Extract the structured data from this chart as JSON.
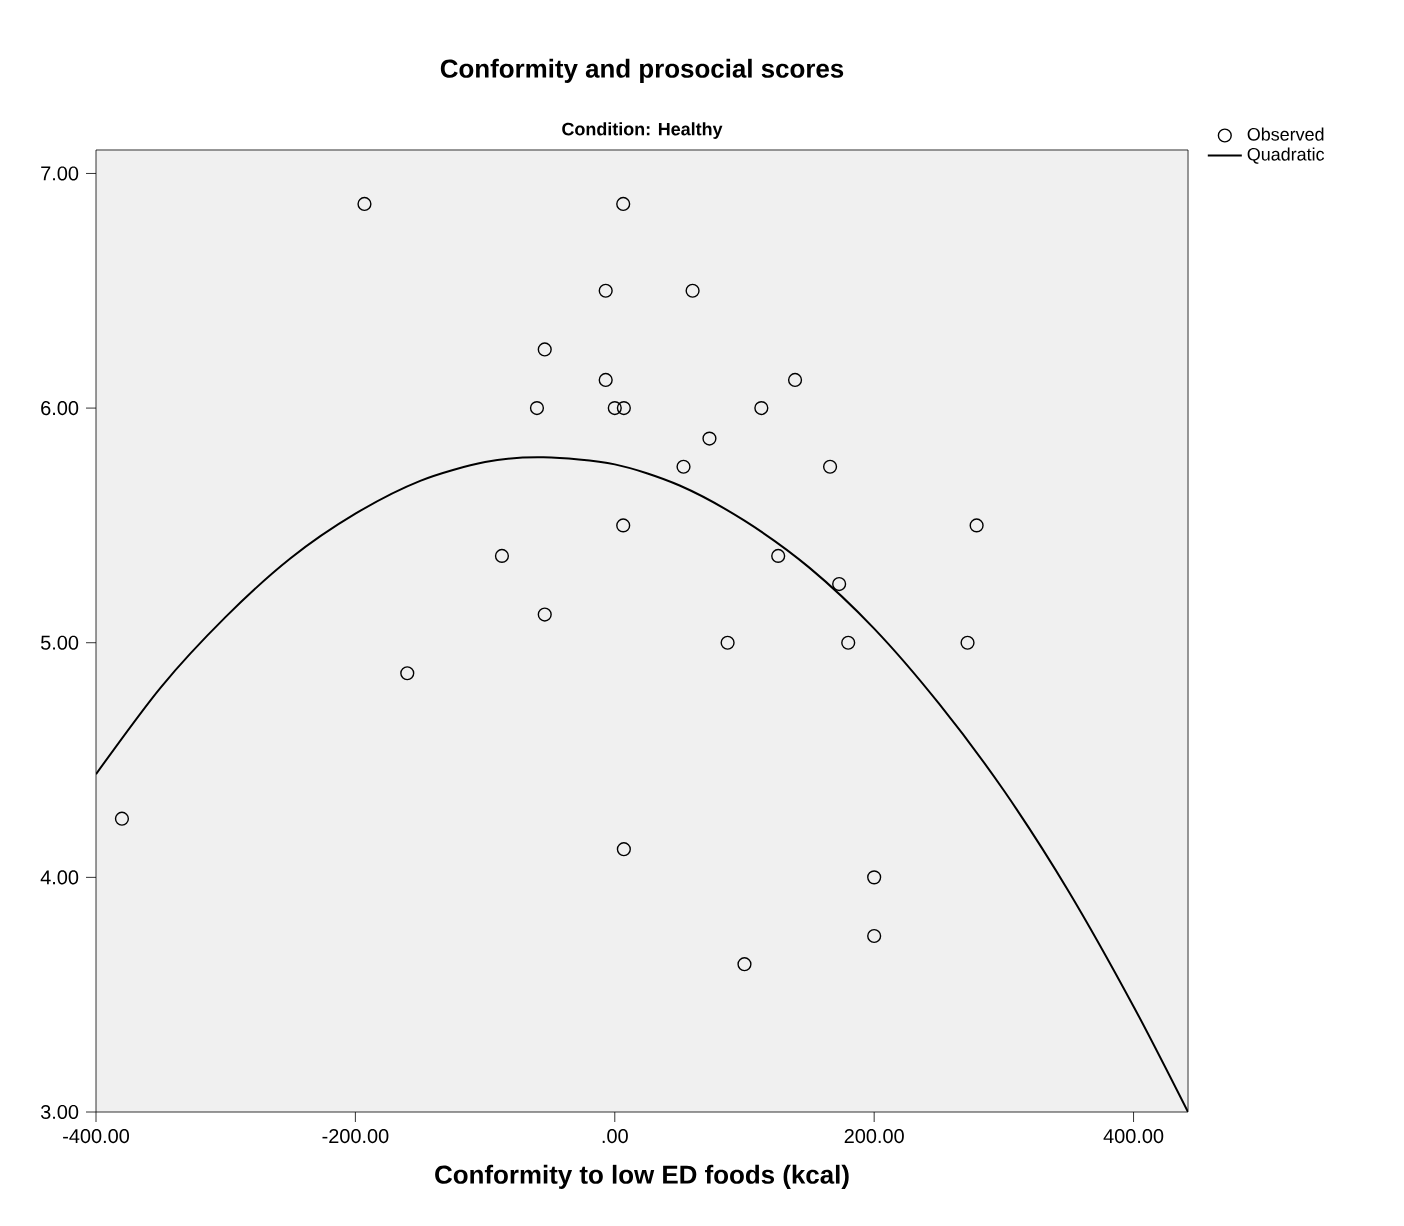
{
  "chart_data": {
    "type": "scatter",
    "title": "Conformity and prosocial scores",
    "subtitle": "Condition: Healthy",
    "xlabel": "Conformity to low ED foods (kcal)",
    "xlim": [
      -400,
      442
    ],
    "ylim": [
      3,
      7.1
    ],
    "xticks": [
      {
        "value": -400,
        "label": "-400.00"
      },
      {
        "value": -200,
        "label": "-200.00"
      },
      {
        "value": 0,
        "label": ".00"
      },
      {
        "value": 200,
        "label": "200.00"
      },
      {
        "value": 400,
        "label": "400.00"
      }
    ],
    "yticks": [
      {
        "value": 3,
        "label": "3.00"
      },
      {
        "value": 4,
        "label": "4.00"
      },
      {
        "value": 5,
        "label": "5.00"
      },
      {
        "value": 6,
        "label": "6.00"
      },
      {
        "value": 7,
        "label": "7.00"
      }
    ],
    "grid": false,
    "legend": "top right",
    "series": [
      {
        "name": "Observed",
        "marker": "circle",
        "color": "#000000",
        "x": [
          -193,
          6.5,
          -7,
          -54,
          -7,
          -60,
          0,
          7,
          53,
          6.5,
          -87,
          -54,
          -160,
          60,
          139,
          113,
          73,
          166,
          279,
          126,
          173,
          87,
          180,
          272,
          -380,
          7,
          200,
          200,
          100
        ],
        "values": [
          6.87,
          6.87,
          6.5,
          6.25,
          6.12,
          6.0,
          6.0,
          6.0,
          5.75,
          5.5,
          5.37,
          5.12,
          4.87,
          6.5,
          6.12,
          6.0,
          5.87,
          5.75,
          5.5,
          5.37,
          5.25,
          5.0,
          5.0,
          5.0,
          4.25,
          4.12,
          4.0,
          3.75,
          3.63
        ]
      },
      {
        "name": "Quadratic",
        "type": "line",
        "marker": "none",
        "color": "#000000",
        "line_style": "solid",
        "x": [
          -400,
          -350,
          -300,
          -250,
          -200,
          -150,
          -100,
          -55,
          0,
          50,
          100,
          150,
          200,
          250,
          300,
          350,
          400,
          442
        ],
        "values": [
          4.44,
          4.81,
          5.11,
          5.36,
          5.55,
          5.69,
          5.77,
          5.79,
          5.76,
          5.67,
          5.52,
          5.32,
          5.06,
          4.74,
          4.37,
          3.94,
          3.45,
          3.0
        ]
      }
    ]
  }
}
